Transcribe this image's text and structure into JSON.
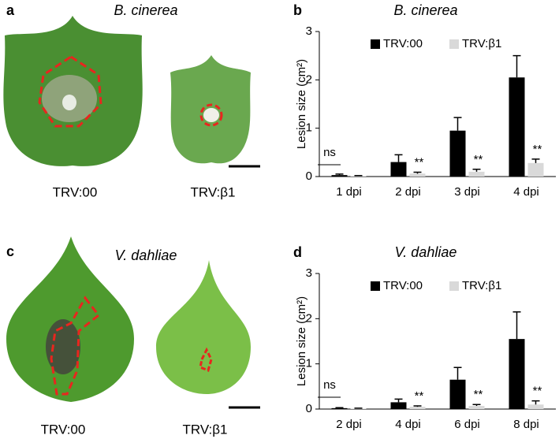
{
  "panels": [
    {
      "letter": "a",
      "title": "B. cinerea",
      "labels": [
        "TRV:00",
        "TRV:β1"
      ]
    },
    {
      "letter": "c",
      "title": "V. dahliae",
      "labels": [
        "TRV:00",
        "TRV:β1"
      ]
    }
  ],
  "chart_data": [
    {
      "type": "bar",
      "label": "b",
      "title": "B. cinerea",
      "y_label": "Lesion size (cm²)",
      "categories": [
        "1 dpi",
        "2 dpi",
        "3 dpi",
        "4 dpi"
      ],
      "series": [
        {
          "name": "TRV:00",
          "color": "#000000",
          "values": [
            0.03,
            0.3,
            0.95,
            2.05
          ],
          "errors": [
            0.02,
            0.15,
            0.27,
            0.45
          ]
        },
        {
          "name": "TRV:β1",
          "color": "#d9d9d9",
          "values": [
            0.01,
            0.06,
            0.1,
            0.28
          ],
          "errors": [
            0.01,
            0.03,
            0.05,
            0.08
          ]
        }
      ],
      "annotations": [
        "ns",
        "**",
        "**",
        "**"
      ],
      "ylim": [
        0,
        3
      ],
      "yticks": [
        0,
        1,
        2,
        3
      ]
    },
    {
      "type": "bar",
      "label": "d",
      "title": "V. dahliae",
      "y_label": "Lesion size (cm²)",
      "categories": [
        "2 dpi",
        "4 dpi",
        "6 dpi",
        "8 dpi"
      ],
      "series": [
        {
          "name": "TRV:00",
          "color": "#000000",
          "values": [
            0.02,
            0.15,
            0.65,
            1.55
          ],
          "errors": [
            0.01,
            0.07,
            0.27,
            0.6
          ]
        },
        {
          "name": "TRV:β1",
          "color": "#d9d9d9",
          "values": [
            0.01,
            0.05,
            0.07,
            0.1
          ],
          "errors": [
            0.01,
            0.02,
            0.03,
            0.08
          ]
        }
      ],
      "annotations": [
        "ns",
        "**",
        "**",
        "**"
      ],
      "ylim": [
        0,
        3
      ],
      "yticks": [
        0,
        1,
        2,
        3
      ]
    }
  ]
}
